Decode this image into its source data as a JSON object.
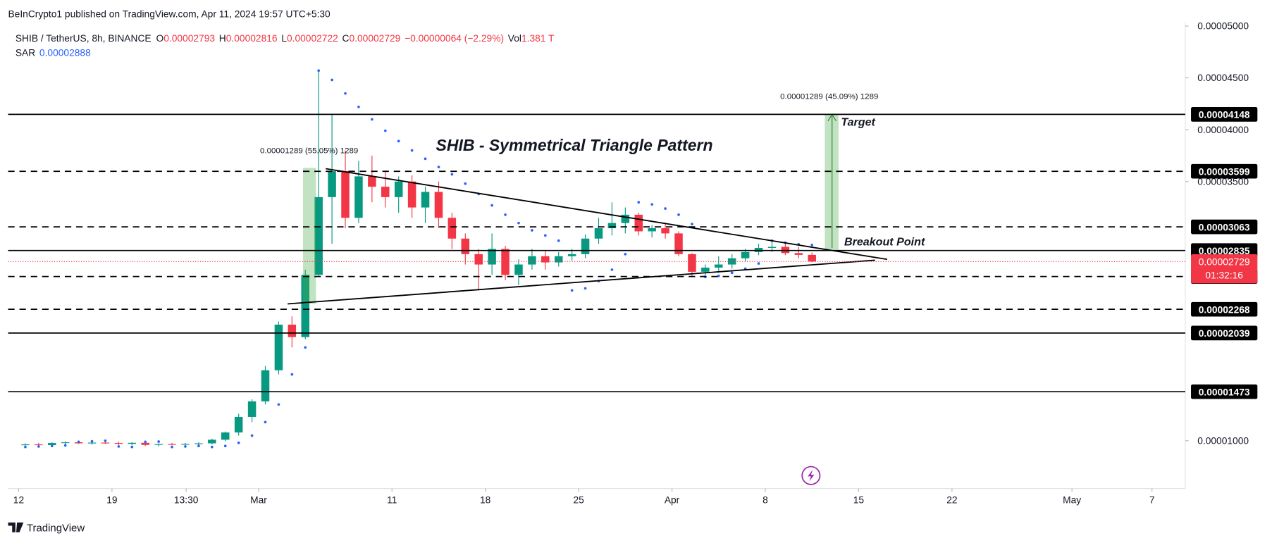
{
  "publisher": "BeInCrypto1 published on TradingView.com, Apr 11, 2024 19:57 UTC+5:30",
  "branding": "TradingView",
  "chart_data": {
    "type": "candlestick",
    "symbol": "SHIB / TetherUS, 8h, BINANCE",
    "ohlc_legend": [
      {
        "label": "O",
        "value": 2.793e-05
      },
      {
        "label": "H",
        "value": 2.816e-05
      },
      {
        "label": "L",
        "value": 2.722e-05
      },
      {
        "label": "C",
        "value": 2.729e-05
      }
    ],
    "change": "−0.00000064 (−2.29%)",
    "volume_label": "Vol",
    "volume": "1.381 T",
    "sar_label": "SAR",
    "sar_value": "0.00002888",
    "color_up": "#089981",
    "color_down": "#f23645",
    "x": [
      "2024-02-12T12:00",
      "2024-02-13T12:00",
      "2024-02-14T12:00",
      "2024-02-15T12:00",
      "2024-02-16T12:00",
      "2024-02-17T12:00",
      "2024-02-18T12:00",
      "2024-02-19T12:00",
      "2024-02-20T12:00",
      "2024-02-21T12:00",
      "2024-02-22T12:00",
      "2024-02-23T12:00",
      "2024-02-24T12:00",
      "2024-02-25T12:00",
      "2024-02-26T12:00",
      "2024-02-27T12:00",
      "2024-02-28T12:00",
      "2024-02-29T12:00",
      "2024-03-01T12:00",
      "2024-03-02T12:00",
      "2024-03-03T12:00",
      "2024-03-04T12:00",
      "2024-03-05T12:00",
      "2024-03-06T12:00",
      "2024-03-07T12:00",
      "2024-03-08T12:00",
      "2024-03-09T12:00",
      "2024-03-10T12:00",
      "2024-03-11T12:00",
      "2024-03-12T12:00",
      "2024-03-13T12:00",
      "2024-03-14T12:00",
      "2024-03-15T12:00",
      "2024-03-16T12:00",
      "2024-03-17T12:00",
      "2024-03-18T12:00",
      "2024-03-19T12:00",
      "2024-03-20T12:00",
      "2024-03-21T12:00",
      "2024-03-22T12:00",
      "2024-03-23T12:00",
      "2024-03-24T12:00",
      "2024-03-25T12:00",
      "2024-03-26T12:00",
      "2024-03-27T12:00",
      "2024-03-28T12:00",
      "2024-03-29T12:00",
      "2024-03-30T12:00",
      "2024-03-31T12:00",
      "2024-04-01T12:00",
      "2024-04-02T12:00",
      "2024-04-03T12:00",
      "2024-04-04T12:00",
      "2024-04-05T12:00",
      "2024-04-06T12:00",
      "2024-04-07T12:00",
      "2024-04-08T12:00",
      "2024-04-09T12:00",
      "2024-04-10T12:00",
      "2024-04-11T12:00"
    ],
    "open": [
      9.6e-06,
      9.65e-06,
      9.58e-06,
      9.78e-06,
      9.85e-06,
      9.75e-06,
      9.82e-06,
      9.78e-06,
      9.7e-06,
      9.8e-06,
      9.6e-06,
      9.68e-06,
      9.62e-06,
      9.7e-06,
      9.75e-06,
      1.01e-05,
      1.08e-05,
      1.23e-05,
      1.38e-05,
      1.68e-05,
      2.12e-05,
      2e-05,
      2.6e-05,
      3.35e-05,
      3.6e-05,
      3.15e-05,
      3.55e-05,
      3.45e-05,
      3.35e-05,
      3.5e-05,
      3.25e-05,
      3.4e-05,
      3.15e-05,
      2.95e-05,
      2.8e-05,
      2.7e-05,
      2.85e-05,
      2.6e-05,
      2.7e-05,
      2.78e-05,
      2.72e-05,
      2.78e-05,
      2.8e-05,
      2.95e-05,
      3.05e-05,
      3.1e-05,
      3.18e-05,
      3.02e-05,
      3.05e-05,
      3e-05,
      2.8e-05,
      2.63e-05,
      2.67e-05,
      2.7e-05,
      2.76e-05,
      2.82e-05,
      2.86e-05,
      2.87e-05,
      2.81e-05,
      2.793e-05
    ],
    "high": [
      9.75e-06,
      9.8e-06,
      9.85e-06,
      9.95e-06,
      9.98e-06,
      9.9e-06,
      9.95e-06,
      9.92e-06,
      9.88e-06,
      9.9e-06,
      9.75e-06,
      9.8e-06,
      9.78e-06,
      9.85e-06,
      1.02e-05,
      1.09e-05,
      1.26e-05,
      1.4e-05,
      1.72e-05,
      2.15e-05,
      2.2e-05,
      2.65e-05,
      4.57e-05,
      4.15e-05,
      3.8e-05,
      3.7e-05,
      3.75e-05,
      3.6e-05,
      3.55e-05,
      3.56e-05,
      3.45e-05,
      3.5e-05,
      3.2e-05,
      3e-05,
      2.85e-05,
      3e-05,
      2.88e-05,
      2.75e-05,
      2.85e-05,
      2.84e-05,
      2.82e-05,
      2.85e-05,
      2.99e-05,
      3.15e-05,
      3.3e-05,
      3.25e-05,
      3.2e-05,
      3.08e-05,
      3.1e-05,
      3.02e-05,
      2.81e-05,
      2.7e-05,
      2.78e-05,
      2.8e-05,
      2.85e-05,
      2.9e-05,
      2.92e-05,
      2.92e-05,
      2.87e-05,
      2.816e-05
    ],
    "low": [
      9.45e-06,
      9.5e-06,
      9.55e-06,
      9.65e-06,
      9.7e-06,
      9.62e-06,
      9.7e-06,
      9.6e-06,
      9.55e-06,
      9.5e-06,
      9.45e-06,
      9.55e-06,
      9.52e-06,
      9.6e-06,
      9.65e-06,
      9.95e-06,
      1.05e-05,
      1.18e-05,
      1.35e-05,
      1.64e-05,
      1.9e-05,
      1.98e-05,
      2.58e-05,
      2.9e-05,
      3.05e-05,
      3.1e-05,
      3.3e-05,
      3.25e-05,
      3.2e-05,
      3.15e-05,
      3.1e-05,
      3.05e-05,
      2.85e-05,
      2.7e-05,
      2.45e-05,
      2.6e-05,
      2.55e-05,
      2.5e-05,
      2.65e-05,
      2.65e-05,
      2.68e-05,
      2.74e-05,
      2.76e-05,
      2.9e-05,
      2.98e-05,
      3e-05,
      2.98e-05,
      2.96e-05,
      2.95e-05,
      2.78e-05,
      2.58e-05,
      2.59e-05,
      2.62e-05,
      2.66e-05,
      2.73e-05,
      2.79e-05,
      2.82e-05,
      2.79e-05,
      2.76e-05,
      2.722e-05
    ],
    "close": [
      9.65e-06,
      9.58e-06,
      9.78e-06,
      9.85e-06,
      9.75e-06,
      9.82e-06,
      9.78e-06,
      9.7e-06,
      9.8e-06,
      9.6e-06,
      9.68e-06,
      9.62e-06,
      9.7e-06,
      9.75e-06,
      1.01e-05,
      1.08e-05,
      1.23e-05,
      1.38e-05,
      1.68e-05,
      2.12e-05,
      2e-05,
      2.6e-05,
      3.35e-05,
      3.6e-05,
      3.15e-05,
      3.55e-05,
      3.45e-05,
      3.35e-05,
      3.5e-05,
      3.25e-05,
      3.4e-05,
      3.15e-05,
      2.95e-05,
      2.8e-05,
      2.7e-05,
      2.85e-05,
      2.6e-05,
      2.7e-05,
      2.78e-05,
      2.72e-05,
      2.78e-05,
      2.8e-05,
      2.95e-05,
      3.05e-05,
      3.1e-05,
      3.18e-05,
      3.02e-05,
      3.05e-05,
      3e-05,
      2.8e-05,
      2.63e-05,
      2.67e-05,
      2.7e-05,
      2.76e-05,
      2.82e-05,
      2.86e-05,
      2.87e-05,
      2.81e-05,
      2.793e-05,
      2.729e-05
    ],
    "sar": {
      "color": "#2962ff",
      "values": [
        9.4e-06,
        9.45e-06,
        9.5e-06,
        9.55e-06,
        9.9e-06,
        9.95e-06,
        1e-05,
        9.45e-06,
        9.4e-06,
        9.9e-06,
        9.92e-06,
        9.4e-06,
        9.45e-06,
        9.5e-06,
        9.4e-06,
        9.5e-06,
        9.8e-06,
        1.05e-05,
        1.18e-05,
        1.35e-05,
        1.64e-05,
        1.9e-05,
        4.57e-05,
        4.48e-05,
        4.35e-05,
        4.22e-05,
        4.1e-05,
        3.99e-05,
        3.89e-05,
        3.8e-05,
        3.72e-05,
        3.64e-05,
        3.57e-05,
        3.48e-05,
        3.38e-05,
        3.27e-05,
        3.18e-05,
        3.1e-05,
        3.03e-05,
        2.98e-05,
        2.93e-05,
        2.45e-05,
        2.47e-05,
        2.54e-05,
        2.65e-05,
        2.8e-05,
        3.3e-05,
        3.28e-05,
        3.24e-05,
        3.18e-05,
        3.09e-05,
        2.58e-05,
        2.59e-05,
        2.62e-05,
        2.66e-05,
        2.71e-05,
        2.93e-05,
        2.91e-05,
        2.895e-05,
        2.888e-05
      ]
    },
    "levels": [
      {
        "value": 4.148e-05,
        "style": "solid"
      },
      {
        "value": 3.599e-05,
        "style": "dashed"
      },
      {
        "value": 3.063e-05,
        "style": "dashed"
      },
      {
        "value": 2.835e-05,
        "style": "solid"
      },
      {
        "value": 2.584e-05,
        "style": "dashed"
      },
      {
        "value": 2.268e-05,
        "style": "dashed"
      },
      {
        "value": 2.039e-05,
        "style": "solid"
      },
      {
        "value": 1.473e-05,
        "style": "solid"
      }
    ],
    "last_price": {
      "value": 2.729e-05,
      "countdown": "01:32:16",
      "color": "#f23645"
    },
    "annotations": {
      "title": "SHIB - Symmetrical Triangle Pattern",
      "target": "Target",
      "breakout": "Breakout Point",
      "measure_left": "0.00001289 (55.05%) 1289",
      "measure_right": "0.00001289 (45.09%) 1289"
    },
    "xlim": [
      "2024-02-11T05:00",
      "2024-05-09T12:00"
    ],
    "xticks": [
      {
        "value": "2024-02-12T00:00",
        "label": "12"
      },
      {
        "value": "2024-02-19T00:00",
        "label": "19"
      },
      {
        "value": "2024-02-24T13:30",
        "label": "13:30"
      },
      {
        "value": "2024-03-01T00:00",
        "label": "Mar"
      },
      {
        "value": "2024-03-11T00:00",
        "label": "11"
      },
      {
        "value": "2024-03-18T00:00",
        "label": "18"
      },
      {
        "value": "2024-03-25T00:00",
        "label": "25"
      },
      {
        "value": "2024-04-01T00:00",
        "label": "Apr"
      },
      {
        "value": "2024-04-08T00:00",
        "label": "8"
      },
      {
        "value": "2024-04-15T00:00",
        "label": "15"
      },
      {
        "value": "2024-04-22T00:00",
        "label": "22"
      },
      {
        "value": "2024-05-01T00:00",
        "label": "May"
      },
      {
        "value": "2024-05-07T00:00",
        "label": "7"
      }
    ],
    "ylim": [
      5.63e-06,
      5.03e-05
    ],
    "yticks": [
      {
        "value": 5e-05,
        "label": "0.00005000"
      },
      {
        "value": 4.5e-05,
        "label": "0.00004500"
      },
      {
        "value": 4e-05,
        "label": "0.00004000"
      },
      {
        "value": 3.5e-05,
        "label": "0.00003500"
      },
      {
        "value": 1e-05,
        "label": "0.00001000"
      }
    ]
  }
}
